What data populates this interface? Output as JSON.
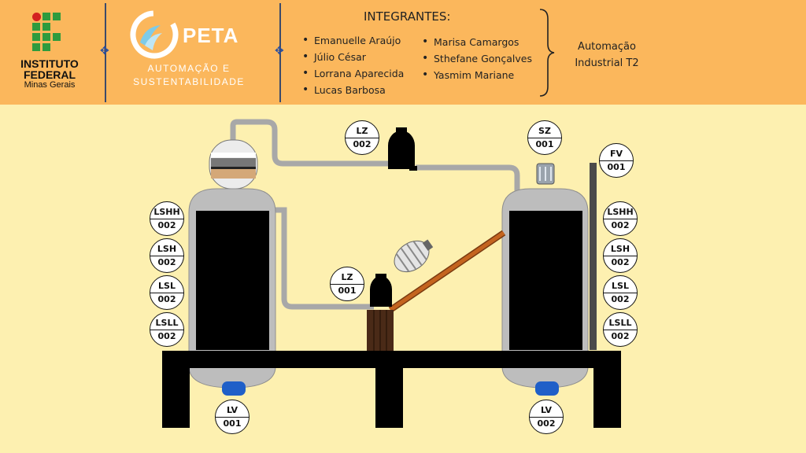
{
  "header": {
    "institution": {
      "line1": "INSTITUTO",
      "line2": "FEDERAL",
      "line3": "Minas Gerais"
    },
    "project": {
      "name": "PETA",
      "subtitle_line1": "AUTOMAÇÃO E",
      "subtitle_line2": "SUSTENTABILIDADE"
    },
    "members": {
      "title": "INTEGRANTES:",
      "names": [
        "Emanuelle Araújo",
        "Júlio César",
        "Lorrana Aparecida",
        "Lucas Barbosa",
        "Marisa Camargos",
        "Sthefane Gonçalves",
        "Yasmim Mariane"
      ]
    },
    "course": {
      "line1": "Automação",
      "line2": "Industrial T2"
    }
  },
  "diagram": {
    "tags": {
      "lz002": {
        "code": "LZ",
        "number": "002"
      },
      "sz001": {
        "code": "SZ",
        "number": "001"
      },
      "fv001": {
        "code": "FV",
        "number": "001"
      },
      "lz001": {
        "code": "LZ",
        "number": "001"
      },
      "left_lshh": {
        "code": "LSHH",
        "number": "002"
      },
      "left_lsh": {
        "code": "LSH",
        "number": "002"
      },
      "left_lsl": {
        "code": "LSL",
        "number": "002"
      },
      "left_lsll": {
        "code": "LSLL",
        "number": "002"
      },
      "right_lshh": {
        "code": "LSHH",
        "number": "002"
      },
      "right_lsh": {
        "code": "LSH",
        "number": "002"
      },
      "right_lsl": {
        "code": "LSL",
        "number": "002"
      },
      "right_lsll": {
        "code": "LSLL",
        "number": "002"
      },
      "lv001": {
        "code": "LV",
        "number": "001"
      },
      "lv002": {
        "code": "LV",
        "number": "002"
      }
    }
  },
  "colors": {
    "header_bg": "#fbb75c",
    "diagram_bg": "#fdf0b0",
    "tank_gray": "#bdbdbd",
    "valve_blue": "#1f5fc8",
    "ifmg_green": "#2e9b3e",
    "ifmg_red": "#d32020",
    "peta_blue": "#7ecbe8",
    "pipe_gray": "#a8a8a8"
  }
}
